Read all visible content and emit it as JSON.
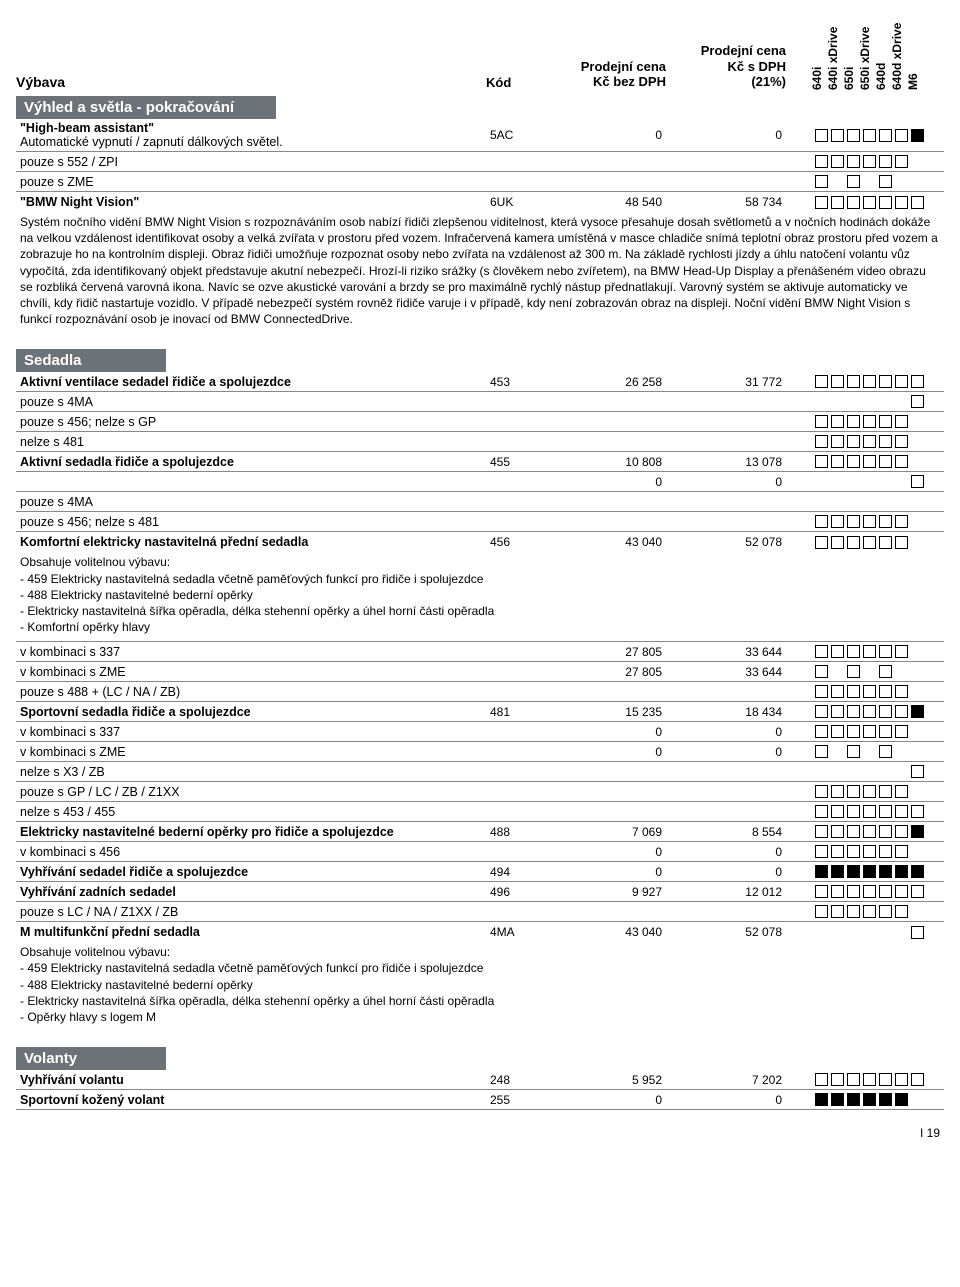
{
  "header": {
    "vybava": "Výbava",
    "kod": "Kód",
    "cena1_l1": "Prodejní cena",
    "cena1_l2": "Kč bez DPH",
    "cena2_l1": "Prodejní cena",
    "cena2_l2": "Kč s DPH",
    "cena2_l3": "(21%)",
    "models": [
      "640i",
      "640i xDrive",
      "650i",
      "650i xDrive",
      "640d",
      "640d xDrive",
      "M6"
    ]
  },
  "section1": {
    "title": "Výhled a světla - pokračování",
    "high_beam": {
      "label": "\"High-beam assistant\"",
      "sub": "Automatické vypnutí / zapnutí dálkových světel.",
      "kod": "5AC",
      "p1": "0",
      "p2": "0",
      "boxes": [
        "e",
        "e",
        "e",
        "e",
        "e",
        "e",
        "f"
      ]
    },
    "pouze552": {
      "label": "pouze s 552 / ZPI",
      "boxes": [
        "e",
        "e",
        "e",
        "e",
        "e",
        "e",
        "s"
      ]
    },
    "pouzeZME": {
      "label": "pouze s ZME",
      "boxes": [
        "e",
        "s",
        "e",
        "s",
        "e",
        "s",
        "s"
      ]
    },
    "night": {
      "label": "\"BMW Night Vision\"",
      "kod": "6UK",
      "p1": "48 540",
      "p2": "58 734",
      "boxes": [
        "e",
        "e",
        "e",
        "e",
        "e",
        "e",
        "e"
      ],
      "desc": "Systém nočního vidění BMW Night Vision s rozpoznáváním osob nabízí řidiči zlepšenou viditelnost, která vysoce přesahuje dosah světlometů a v nočních hodinách dokáže na velkou vzdálenost identifikovat osoby a velká zvířata v prostoru před vozem. Infračervená kamera umístěná v masce chladiče snímá teplotní obraz prostoru před vozem a zobrazuje ho na kontrolním displeji. Obraz řidiči umožňuje rozpoznat osoby nebo zvířata na vzdálenost až 300 m. Na základě rychlosti jízdy a úhlu natočení volantu vůz vypočítá, zda identifikovaný objekt představuje akutní nebezpečí. Hrozí-li riziko srážky (s člověkem nebo zvířetem), na BMW Head-Up Display a přenášeném video obrazu se rozbliká červená varovná ikona. Navíc se ozve akustické varování a brzdy se pro maximálně rychlý nástup přednatlakují.  Varovný systém se aktivuje automaticky ve chvíli, kdy řidič nastartuje vozidlo. V případě nebezpečí systém rovněž řidiče varuje i v případě, kdy není zobrazován obraz na displeji. Noční vidění BMW Night Vision s funkcí rozpoznávání osob je inovací od BMW ConnectedDrive."
    }
  },
  "section2": {
    "title": "Sedadla",
    "r453": {
      "label": "Aktivní ventilace sedadel řidiče a spolujezdce",
      "kod": "453",
      "p1": "26 258",
      "p2": "31 772",
      "boxes": [
        "e",
        "e",
        "e",
        "e",
        "e",
        "e",
        "e"
      ]
    },
    "r453a": {
      "label": "pouze s 4MA",
      "boxes": [
        "s",
        "s",
        "s",
        "s",
        "s",
        "s",
        "e"
      ]
    },
    "r453b": {
      "label": "pouze s 456; nelze s GP",
      "boxes": [
        "e",
        "e",
        "e",
        "e",
        "e",
        "e",
        "s"
      ]
    },
    "r453c": {
      "label": "nelze s 481",
      "boxes": [
        "e",
        "e",
        "e",
        "e",
        "e",
        "e",
        "s"
      ]
    },
    "r455": {
      "label": "Aktivní sedadla řidiče a spolujezdce",
      "kod": "455",
      "p1": "10 808",
      "p2": "13 078",
      "boxes": [
        "e",
        "e",
        "e",
        "e",
        "e",
        "e",
        "s"
      ]
    },
    "r455z": {
      "label": "",
      "p1": "0",
      "p2": "0",
      "boxes": [
        "s",
        "s",
        "s",
        "s",
        "s",
        "s",
        "e"
      ]
    },
    "r455a": {
      "label": "pouze s 4MA"
    },
    "r455b": {
      "label": "pouze s 456; nelze s 481",
      "boxes": [
        "e",
        "e",
        "e",
        "e",
        "e",
        "e",
        "s"
      ]
    },
    "r456": {
      "label": "Komfortní elektricky nastavitelná přední sedadla",
      "kod": "456",
      "p1": "43 040",
      "p2": "52 078",
      "boxes": [
        "e",
        "e",
        "e",
        "e",
        "e",
        "e",
        "s"
      ]
    },
    "r456desc": "Obsahuje volitelnou výbavu:\n- 459 Elektricky nastavitelná sedadla včetně paměťových funkcí pro řidiče i spolujezdce\n- 488 Elektricky nastavitelné bederní opěrky\n- Elektricky nastavitelná šířka opěradla, délka stehenní opěrky a úhel horní části opěradla\n- Komfortní opěrky hlavy",
    "r456a": {
      "label": "v kombinaci s 337",
      "p1": "27 805",
      "p2": "33 644",
      "boxes": [
        "e",
        "e",
        "e",
        "e",
        "e",
        "e",
        "s"
      ]
    },
    "r456b": {
      "label": "v kombinaci s ZME",
      "p1": "27 805",
      "p2": "33 644",
      "boxes": [
        "e",
        "s",
        "e",
        "s",
        "e",
        "s",
        "s"
      ]
    },
    "r456c": {
      "label": "pouze s  488 + (LC / NA / ZB)",
      "boxes": [
        "e",
        "e",
        "e",
        "e",
        "e",
        "e",
        "s"
      ]
    },
    "r481": {
      "label": "Sportovní sedadla řidiče a spolujezdce",
      "kod": "481",
      "p1": "15 235",
      "p2": "18 434",
      "boxes": [
        "e",
        "e",
        "e",
        "e",
        "e",
        "e",
        "f"
      ]
    },
    "r481a": {
      "label": "v kombinaci s 337",
      "p1": "0",
      "p2": "0",
      "boxes": [
        "e",
        "e",
        "e",
        "e",
        "e",
        "e",
        "s"
      ]
    },
    "r481b": {
      "label": "v kombinaci s ZME",
      "p1": "0",
      "p2": "0",
      "boxes": [
        "e",
        "s",
        "e",
        "s",
        "e",
        "s",
        "s"
      ]
    },
    "r481c": {
      "label": "nelze s X3 / ZB",
      "boxes": [
        "s",
        "s",
        "s",
        "s",
        "s",
        "s",
        "e"
      ]
    },
    "r481d": {
      "label": "pouze s GP  / LC / ZB / Z1XX",
      "boxes": [
        "e",
        "e",
        "e",
        "e",
        "e",
        "e",
        "s"
      ]
    },
    "r481e": {
      "label": "nelze s 453 / 455",
      "boxes": [
        "e",
        "e",
        "e",
        "e",
        "e",
        "e",
        "e"
      ]
    },
    "r488": {
      "label": "Elektricky nastavitelné bederní opěrky pro řidiče a spolujezdce",
      "kod": "488",
      "p1": "7 069",
      "p2": "8 554",
      "boxes": [
        "e",
        "e",
        "e",
        "e",
        "e",
        "e",
        "f"
      ]
    },
    "r488a": {
      "label": "v kombinaci s 456",
      "p1": "0",
      "p2": "0",
      "boxes": [
        "e",
        "e",
        "e",
        "e",
        "e",
        "e",
        "s"
      ]
    },
    "r494": {
      "label": "Vyhřívání sedadel řidiče a spolujezdce",
      "kod": "494",
      "p1": "0",
      "p2": "0",
      "boxes": [
        "f",
        "f",
        "f",
        "f",
        "f",
        "f",
        "f"
      ]
    },
    "r496": {
      "label": "Vyhřívání zadních sedadel",
      "kod": "496",
      "p1": "9 927",
      "p2": "12 012",
      "boxes": [
        "e",
        "e",
        "e",
        "e",
        "e",
        "e",
        "e"
      ]
    },
    "r496a": {
      "label": "pouze s LC / NA / Z1XX / ZB",
      "boxes": [
        "e",
        "e",
        "e",
        "e",
        "e",
        "e",
        "s"
      ]
    },
    "r4ma": {
      "label": "M multifunkční přední sedadla",
      "kod": "4MA",
      "p1": "43 040",
      "p2": "52 078",
      "boxes": [
        "s",
        "s",
        "s",
        "s",
        "s",
        "s",
        "e"
      ]
    },
    "r4madesc": "Obsahuje volitelnou výbavu:\n- 459 Elektricky nastavitelná sedadla včetně paměťových funkcí pro řidiče i spolujezdce\n- 488 Elektricky nastavitelné bederní opěrky\n- Elektricky nastavitelná šířka opěradla, délka stehenní opěrky a úhel horní části opěradla\n- Opěrky hlavy s logem M"
  },
  "section3": {
    "title": "Volanty",
    "r248": {
      "label": "Vyhřívání volantu",
      "kod": "248",
      "p1": "5 952",
      "p2": "7 202",
      "boxes": [
        "e",
        "e",
        "e",
        "e",
        "e",
        "e",
        "e"
      ]
    },
    "r255": {
      "label": "Sportovní kožený volant",
      "kod": "255",
      "p1": "0",
      "p2": "0",
      "boxes": [
        "f",
        "f",
        "f",
        "f",
        "f",
        "f",
        "s"
      ]
    }
  },
  "footer": {
    "page": "I 19"
  }
}
